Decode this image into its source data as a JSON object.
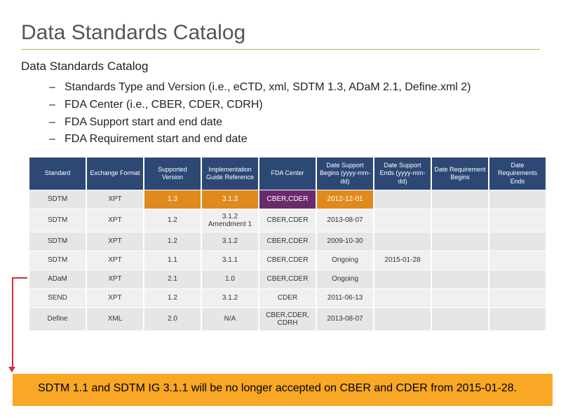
{
  "title": "Data Standards Catalog",
  "subtitle": "Data Standards Catalog",
  "bullets": [
    "Standards Type and Version (i.e., eCTD, xml, SDTM 1.3, ADaM 2.1, Define.xml 2)",
    "FDA Center (i.e., CBER, CDER, CDRH)",
    "FDA Support start and end date",
    "FDA Requirement start and end date"
  ],
  "table": {
    "columns": [
      "Standard",
      "Exchange Format",
      "Supported Version",
      "Implementation Guide Reference",
      "FDA Center",
      "Date Support Begins (yyyy-mm-dd)",
      "Date Support Ends (yyyy-mm-dd)",
      "Date Requirement Begins",
      "Date Requirements Ends"
    ],
    "rows": [
      {
        "cells": [
          "SDTM",
          "XPT",
          "1.3",
          "3.1.3",
          "CBER,CDER",
          "2012-12-01",
          "",
          "",
          ""
        ],
        "highlight": [
          null,
          null,
          "orange",
          "orange",
          "purple",
          "orange",
          null,
          null,
          null
        ]
      },
      {
        "cells": [
          "SDTM",
          "XPT",
          "1.2",
          "3.1.2 Amendment 1",
          "CBER,CDER",
          "2013-08-07",
          "",
          "",
          ""
        ],
        "highlight": [
          null,
          null,
          null,
          null,
          null,
          null,
          null,
          null,
          null
        ]
      },
      {
        "cells": [
          "SDTM",
          "XPT",
          "1.2",
          "3.1.2",
          "CBER,CDER",
          "2009-10-30",
          "",
          "",
          ""
        ],
        "highlight": [
          null,
          null,
          null,
          null,
          null,
          null,
          null,
          null,
          null
        ]
      },
      {
        "cells": [
          "SDTM",
          "XPT",
          "1.1",
          "3.1.1",
          "CBER,CDER",
          "Ongoing",
          "2015-01-28",
          "",
          ""
        ],
        "highlight": [
          null,
          null,
          null,
          null,
          null,
          null,
          null,
          null,
          null
        ]
      },
      {
        "cells": [
          "ADaM",
          "XPT",
          "2.1",
          "1.0",
          "CBER,CDER",
          "Ongoing",
          "",
          "",
          ""
        ],
        "highlight": [
          null,
          null,
          null,
          null,
          null,
          null,
          null,
          null,
          null
        ]
      },
      {
        "cells": [
          "SEND",
          "XPT",
          "1.2",
          "3.1.2",
          "CDER",
          "2011-06-13",
          "",
          "",
          ""
        ],
        "highlight": [
          null,
          null,
          null,
          null,
          null,
          null,
          null,
          null,
          null
        ]
      },
      {
        "cells": [
          "Define",
          "XML",
          "2.0",
          "N/A",
          "CBER,CDER, CDRH",
          "2013-08-07",
          "",
          "",
          ""
        ],
        "highlight": [
          null,
          null,
          null,
          null,
          null,
          null,
          null,
          null,
          null
        ]
      }
    ],
    "header_bg": "#2d4875",
    "header_fg": "#ffffff",
    "cell_bg": "#e6e6e6",
    "cell_alt_bg": "#f0f0f0",
    "highlight_orange": "#e08a1e",
    "highlight_purple": "#6b2a6b"
  },
  "callout": "SDTM 1.1 and SDTM IG 3.1.1 will be no longer accepted on CBER and CDER from 2015-01-28.",
  "callout_bg": "#f9a825",
  "connector_color": "#d32f2f"
}
